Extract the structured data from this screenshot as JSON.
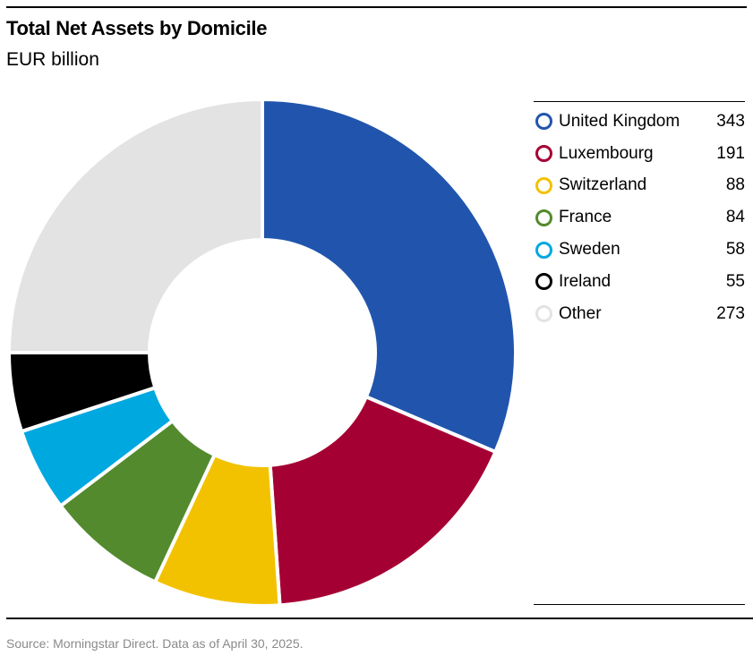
{
  "chart_data": {
    "type": "pie",
    "title": "Total Net Assets by Domicile",
    "subtitle": "EUR billion",
    "categories": [
      "United Kingdom",
      "Luxembourg",
      "Switzerland",
      "France",
      "Sweden",
      "Ireland",
      "Other"
    ],
    "values": [
      343,
      191,
      88,
      84,
      58,
      55,
      273
    ],
    "colors": [
      "#2155ad",
      "#a50034",
      "#f2c200",
      "#538a2d",
      "#00a8e0",
      "#000000",
      "#e3e3e3"
    ],
    "legend_position": "right",
    "source": "Source: Morningstar Direct. Data as of  April 30, 2025."
  }
}
